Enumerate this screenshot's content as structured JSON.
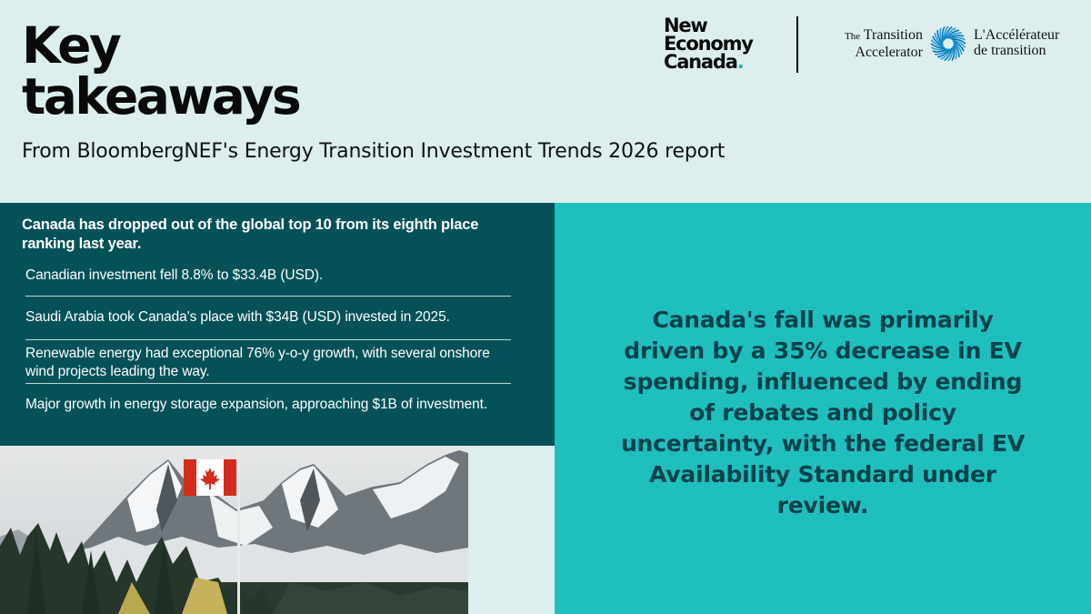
{
  "header": {
    "title_line1": "Key",
    "title_line2": "takeaways",
    "subtitle": "From BloombergNEF's Energy Transition Investment Trends 2026 report"
  },
  "logos": {
    "nec": {
      "line1": "New",
      "line2": "Economy",
      "line3": "Canada"
    },
    "transition_accelerator": {
      "en_the": "The",
      "en_line1": "Transition",
      "en_line2": "Accelerator",
      "fr_line1": "L'Accélérateur",
      "fr_line2": "de transition"
    }
  },
  "panel": {
    "heading": "Canada has dropped out of the global top 10 from its eighth place ranking last year.",
    "bullets": [
      "Canadian investment fell 8.8% to $33.4B (USD).",
      "Saudi Arabia took Canada's place with $34B (USD) invested in 2025.",
      "Renewable energy had exceptional 76% y-o-y growth, with several onshore wind projects leading the way.",
      "Major growth in energy storage expansion, approaching $1B of investment."
    ]
  },
  "callout": "Canada's fall was primarily driven by a 35% decrease in EV spending, influenced by ending of rebates and policy uncertainty, with the federal EV Availability Standard under review.",
  "colors": {
    "background": "#dcefee",
    "dark_panel": "#045258",
    "teal_panel": "#1fbfbe",
    "callout_text": "#06424a",
    "accent": "#1bb8b5"
  },
  "image": {
    "subject": "canadian-flag-mountains-photo"
  }
}
